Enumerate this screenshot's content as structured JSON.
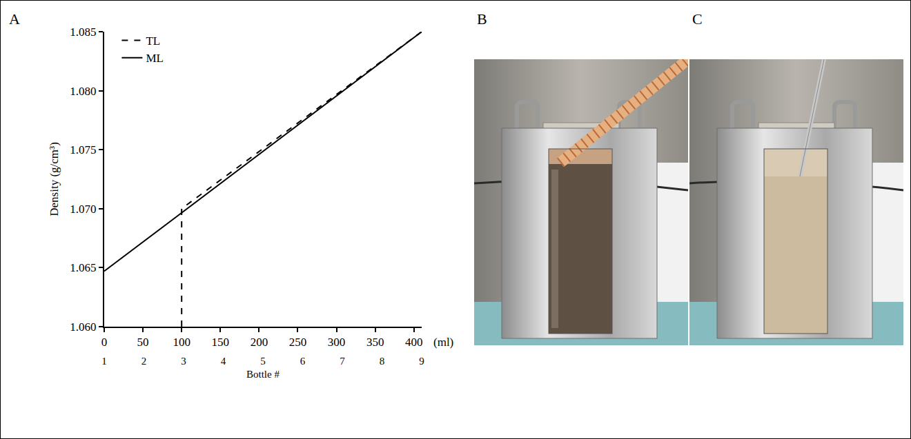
{
  "panel_labels": [
    "A",
    "B",
    "C"
  ],
  "chart_data": {
    "type": "line",
    "series": [
      {
        "name": "TL",
        "color": "#000000",
        "line_style": "dashed",
        "x": [
          100,
          100,
          410
        ],
        "values": [
          1.06,
          1.07,
          1.085
        ]
      },
      {
        "name": "ML",
        "color": "#000000",
        "line_style": "solid",
        "x": [
          0,
          410
        ],
        "values": [
          1.0647,
          1.085
        ]
      }
    ],
    "xlabel": "(ml)",
    "ylabel": "Density (g/cm³)",
    "xlim": [
      0,
      410
    ],
    "xticks": [
      0,
      50,
      100,
      150,
      200,
      250,
      300,
      350,
      400
    ],
    "ylim": [
      1.06,
      1.085
    ],
    "yticks": [
      {
        "value": 1.06,
        "label": "1.060"
      },
      1.065,
      {
        "value": 1.07,
        "label": "1.070"
      },
      1.075,
      {
        "value": 1.08,
        "label": "1.080"
      },
      1.085
    ],
    "x2label": "Bottle #",
    "x2lim": [
      1,
      9
    ],
    "x2ticks": [
      1,
      2,
      3,
      4,
      5,
      6,
      7,
      8,
      9
    ],
    "legend": "top left",
    "grid": false
  }
}
